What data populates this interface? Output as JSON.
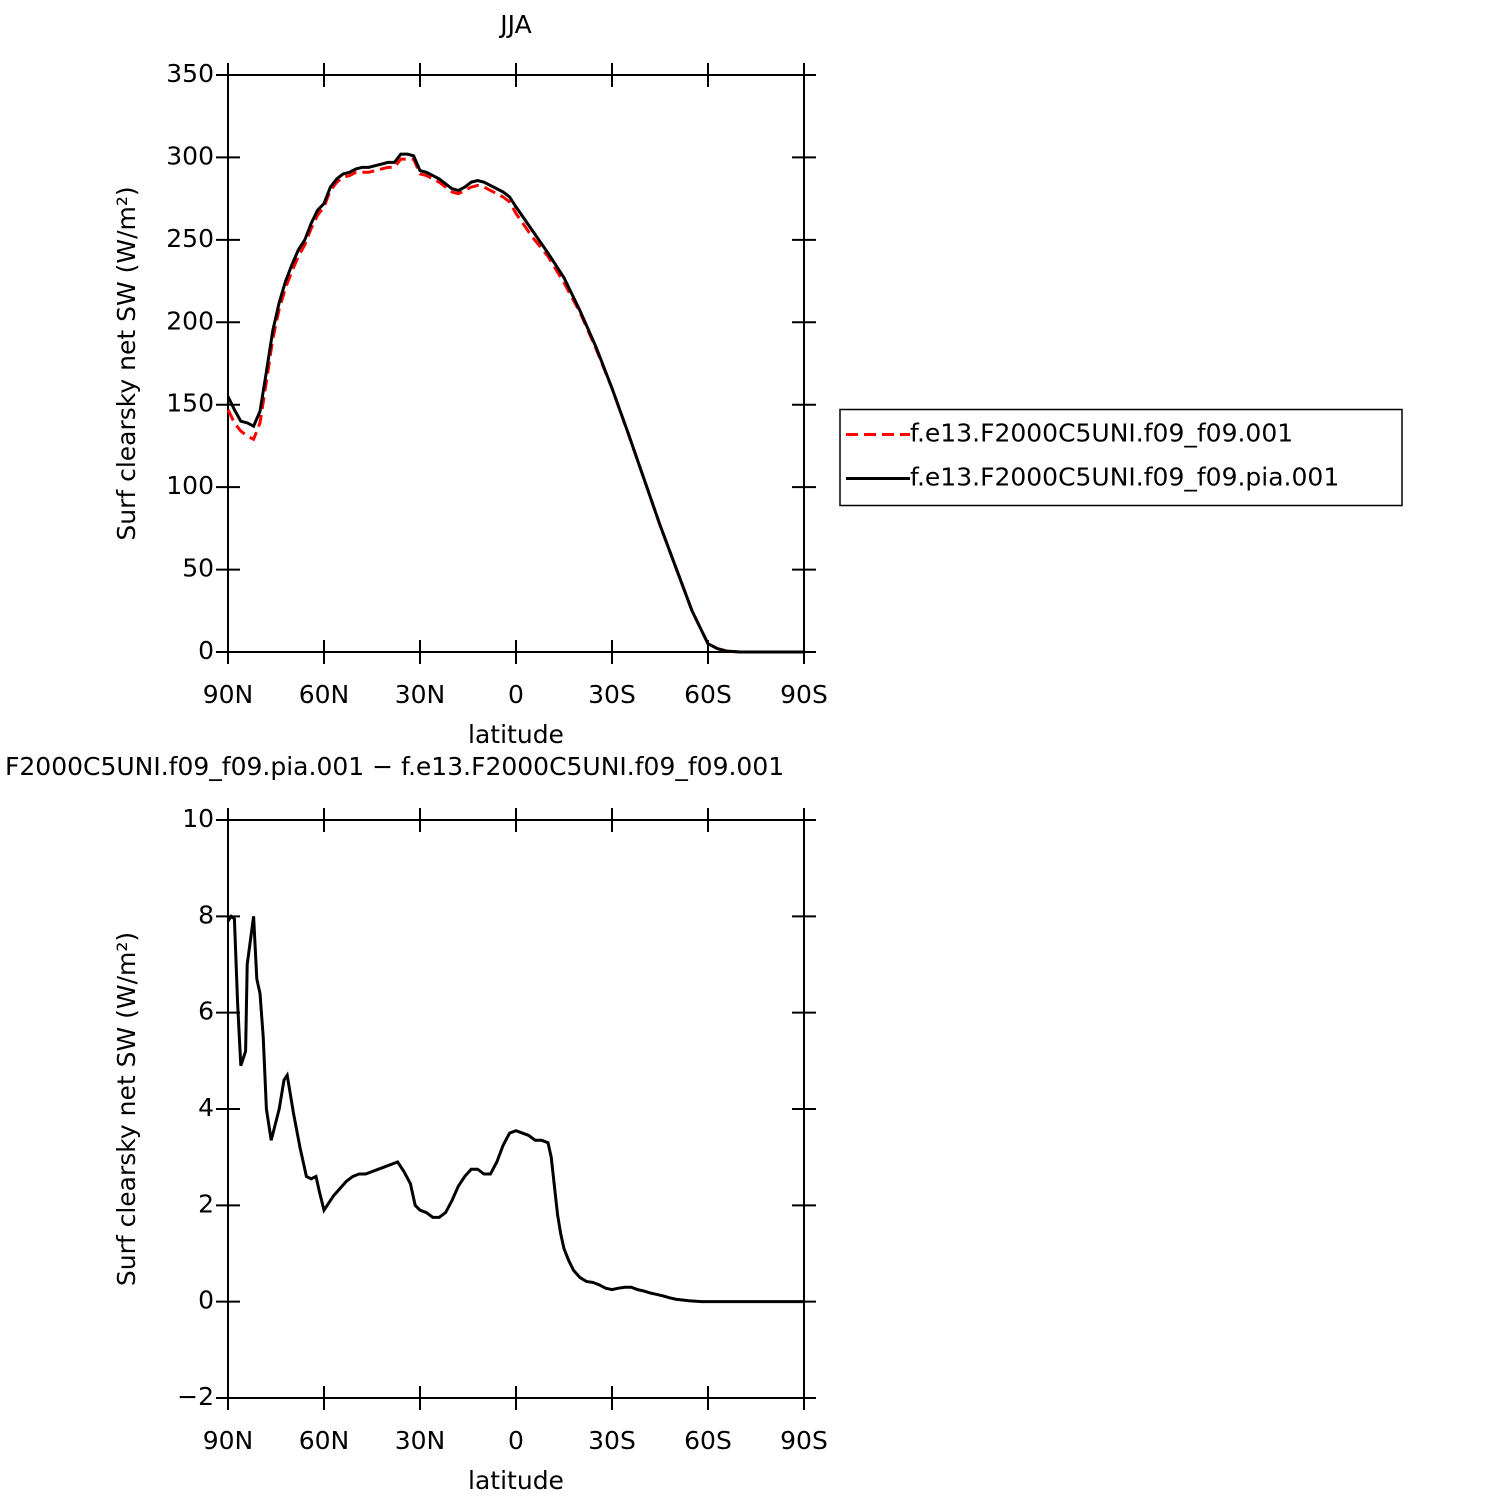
{
  "chart_data": [
    {
      "type": "line",
      "title": "JJA",
      "xlabel": "latitude",
      "ylabel": "Surf clearsky net SW (W/m²)",
      "x": [
        90,
        88,
        86,
        84,
        82,
        80,
        78,
        76,
        74,
        72,
        70,
        68,
        66,
        64,
        62,
        60,
        58,
        56,
        54,
        52,
        50,
        48,
        46,
        44,
        42,
        40,
        38,
        36,
        34,
        32,
        30,
        28,
        26,
        24,
        22,
        20,
        18,
        16,
        14,
        12,
        10,
        8,
        6,
        4,
        2,
        0,
        -5,
        -10,
        -15,
        -20,
        -25,
        -30,
        -35,
        -40,
        -45,
        -50,
        -55,
        -60,
        -63,
        -66,
        -70,
        -75,
        -80,
        -90
      ],
      "series": [
        {
          "name": "f.e13.F2000C5UNI.f09_f09.001",
          "color": "#ff0000",
          "linestyle": "dashed",
          "values": [
            147,
            139,
            134,
            131,
            129,
            139,
            164,
            190,
            208,
            221,
            231,
            240,
            247,
            257,
            265,
            270,
            280,
            285,
            288,
            289,
            291,
            291,
            291,
            292,
            293,
            294,
            294,
            299,
            299,
            299,
            290,
            289,
            287,
            285,
            282,
            279,
            278,
            280,
            282,
            283,
            282,
            280,
            278,
            276,
            273,
            266,
            252,
            240,
            224,
            206,
            184,
            160,
            133,
            105,
            77,
            51,
            25,
            5,
            2,
            0.5,
            0,
            0,
            0,
            0
          ]
        },
        {
          "name": "f.e13.F2000C5UNI.f09_f09.pia.001",
          "color": "#000000",
          "linestyle": "solid",
          "values": [
            155,
            147,
            140,
            139,
            137,
            146,
            170,
            195,
            212,
            225,
            235,
            244,
            250,
            260,
            268,
            272,
            282,
            287,
            290,
            291,
            293,
            294,
            294,
            295,
            296,
            297,
            297,
            302,
            302,
            301,
            292,
            291,
            289,
            287,
            284,
            281,
            280,
            282,
            285,
            286,
            285,
            283,
            281,
            279,
            276,
            270,
            256,
            242,
            227,
            207,
            185,
            160,
            133,
            105,
            77,
            51,
            25,
            5,
            2,
            0.5,
            0,
            0,
            0,
            0
          ]
        }
      ],
      "xlim": [
        90,
        -90
      ],
      "xticks": [
        {
          "value": 90,
          "label": "90N"
        },
        {
          "value": 60,
          "label": "60N"
        },
        {
          "value": 30,
          "label": "30N"
        },
        0,
        {
          "value": -30,
          "label": "30S"
        },
        {
          "value": -60,
          "label": "60S"
        },
        {
          "value": -90,
          "label": "90S"
        }
      ],
      "ylim": [
        0,
        350
      ],
      "yticks": [
        0,
        50,
        100,
        150,
        200,
        250,
        300,
        350
      ],
      "legend": "right"
    },
    {
      "type": "line",
      "title": "F2000C5UNI.f09_f09.pia.001 − f.e13.F2000C5UNI.f09_f09.001",
      "xlabel": "latitude",
      "ylabel": "Surf clearsky net SW (W/m²)",
      "x": [
        90,
        89,
        88,
        87,
        86,
        84.5,
        84,
        82,
        81,
        80,
        79,
        78,
        76.5,
        74,
        72.5,
        71.5,
        69.5,
        67.5,
        66.5,
        65.5,
        64,
        62.5,
        61.5,
        60,
        58.5,
        57,
        55,
        53,
        51,
        49,
        47,
        45,
        43,
        41,
        39,
        37,
        35,
        33,
        31.5,
        30,
        28,
        26,
        24,
        22,
        20,
        18,
        16,
        14,
        12,
        10,
        8,
        6,
        4,
        2,
        0,
        -2,
        -4,
        -6,
        -8,
        -10,
        -11,
        -12,
        -13,
        -14,
        -15,
        -16.5,
        -18,
        -20,
        -22,
        -24,
        -26,
        -28,
        -30,
        -32,
        -34,
        -36,
        -38,
        -40,
        -42,
        -44,
        -46,
        -48,
        -50,
        -54,
        -58,
        -60,
        -70,
        -80,
        -90
      ],
      "series": [
        {
          "color": "#000000",
          "linestyle": "solid",
          "values": [
            7.9,
            8.0,
            7.95,
            6.2,
            4.9,
            5.2,
            7.0,
            8.0,
            6.7,
            6.4,
            5.5,
            4.0,
            3.35,
            4.0,
            4.6,
            4.7,
            3.9,
            3.2,
            2.9,
            2.6,
            2.55,
            2.6,
            2.3,
            1.9,
            2.05,
            2.2,
            2.35,
            2.5,
            2.6,
            2.65,
            2.65,
            2.7,
            2.75,
            2.8,
            2.85,
            2.9,
            2.7,
            2.45,
            2.0,
            1.9,
            1.85,
            1.75,
            1.75,
            1.85,
            2.1,
            2.4,
            2.6,
            2.75,
            2.75,
            2.65,
            2.65,
            2.9,
            3.25,
            3.5,
            3.55,
            3.5,
            3.45,
            3.35,
            3.35,
            3.3,
            3.0,
            2.4,
            1.8,
            1.4,
            1.1,
            0.85,
            0.65,
            0.5,
            0.42,
            0.4,
            0.35,
            0.28,
            0.25,
            0.28,
            0.3,
            0.3,
            0.25,
            0.22,
            0.18,
            0.15,
            0.12,
            0.08,
            0.05,
            0.02,
            0,
            0,
            0,
            0,
            0
          ]
        }
      ],
      "xlim": [
        90,
        -90
      ],
      "xticks": [
        {
          "value": 90,
          "label": "90N"
        },
        {
          "value": 60,
          "label": "60N"
        },
        {
          "value": 30,
          "label": "30N"
        },
        0,
        {
          "value": -30,
          "label": "30S"
        },
        {
          "value": -60,
          "label": "60S"
        },
        {
          "value": -90,
          "label": "90S"
        }
      ],
      "ylim": [
        -2,
        10
      ],
      "yticks": [
        {
          "value": -2,
          "label": "−2"
        },
        0,
        2,
        4,
        6,
        8,
        10
      ]
    }
  ]
}
